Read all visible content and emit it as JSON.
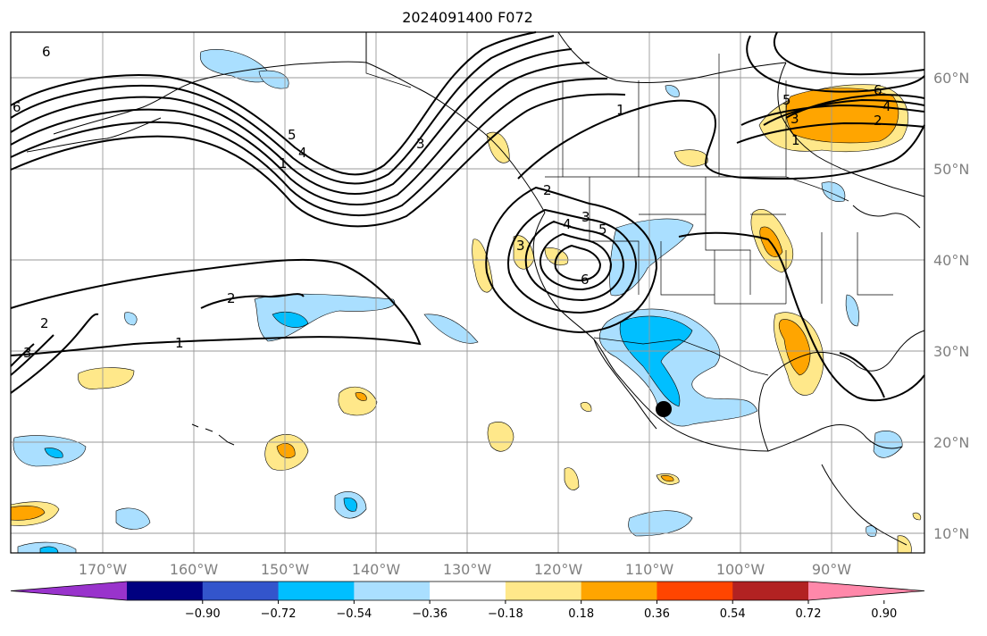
{
  "title": "2024091400 F072",
  "lon_labels": [
    "170°W",
    "160°W",
    "150°W",
    "140°W",
    "130°W",
    "120°W",
    "110°W",
    "100°W",
    "90°W"
  ],
  "lat_labels": [
    "60°N",
    "50°N",
    "40°N",
    "30°N",
    "20°N",
    "10°N"
  ],
  "colorbar": {
    "ticks": [
      "−0.90",
      "−0.72",
      "−0.54",
      "−0.36",
      "−0.18",
      "0.18",
      "0.36",
      "0.54",
      "0.72",
      "0.90"
    ],
    "colors": [
      "#9933cc",
      "#000080",
      "#3355cc",
      "#00bfff",
      "#aadfff",
      "#ffffff",
      "#ffe88a",
      "#ffa500",
      "#ff4500",
      "#b22222",
      "#ff88aa"
    ]
  },
  "contour_labels": {
    "c1": "6",
    "c2": "6",
    "c3": "5",
    "c4": "4",
    "c5": "1",
    "c6": "3",
    "c7": "2",
    "c8": "4",
    "c9": "3",
    "c10": "5",
    "c11": "6",
    "c12": "2",
    "c13": "1",
    "c14": "2",
    "c15": "3",
    "c16": "1",
    "c17": "5",
    "c18": "6",
    "c19": "4",
    "c20": "3",
    "c21": "2",
    "c22": "1",
    "c23": "3"
  },
  "marker": "storm-center"
}
